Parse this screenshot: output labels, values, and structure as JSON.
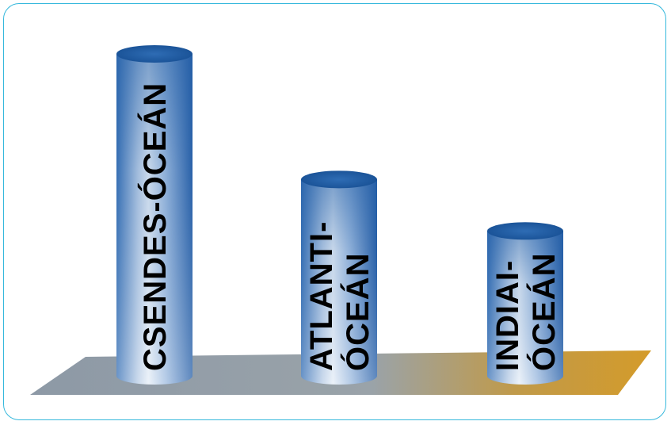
{
  "chart_data": {
    "type": "bar",
    "style": "3d-cylinder",
    "categories": [
      "CSENDES-ÓCEÁN",
      "ATLANTI-ÓCEÁN",
      "INDIAI-ÓCEÁN"
    ],
    "label_lines": [
      [
        "CSENDES-ÓCEÁN"
      ],
      [
        "ATLANTI-",
        "ÓCEÁN"
      ],
      [
        "INDIAI-",
        "ÓCEÁN"
      ]
    ],
    "values": [
      100,
      61,
      45
    ],
    "title": "",
    "xlabel": "",
    "ylabel": "",
    "ylim": [
      0,
      100
    ],
    "grid": false,
    "legend": "none",
    "axes_visible": false
  },
  "colors": {
    "frame_border": "#35b8dc",
    "bar_top": "#1f5fa8",
    "bar_body_dark": "#2a64ad",
    "bar_body_light": "#dce7f3",
    "floor_left": "#8e9aa6",
    "floor_right": "#d19a2e"
  }
}
